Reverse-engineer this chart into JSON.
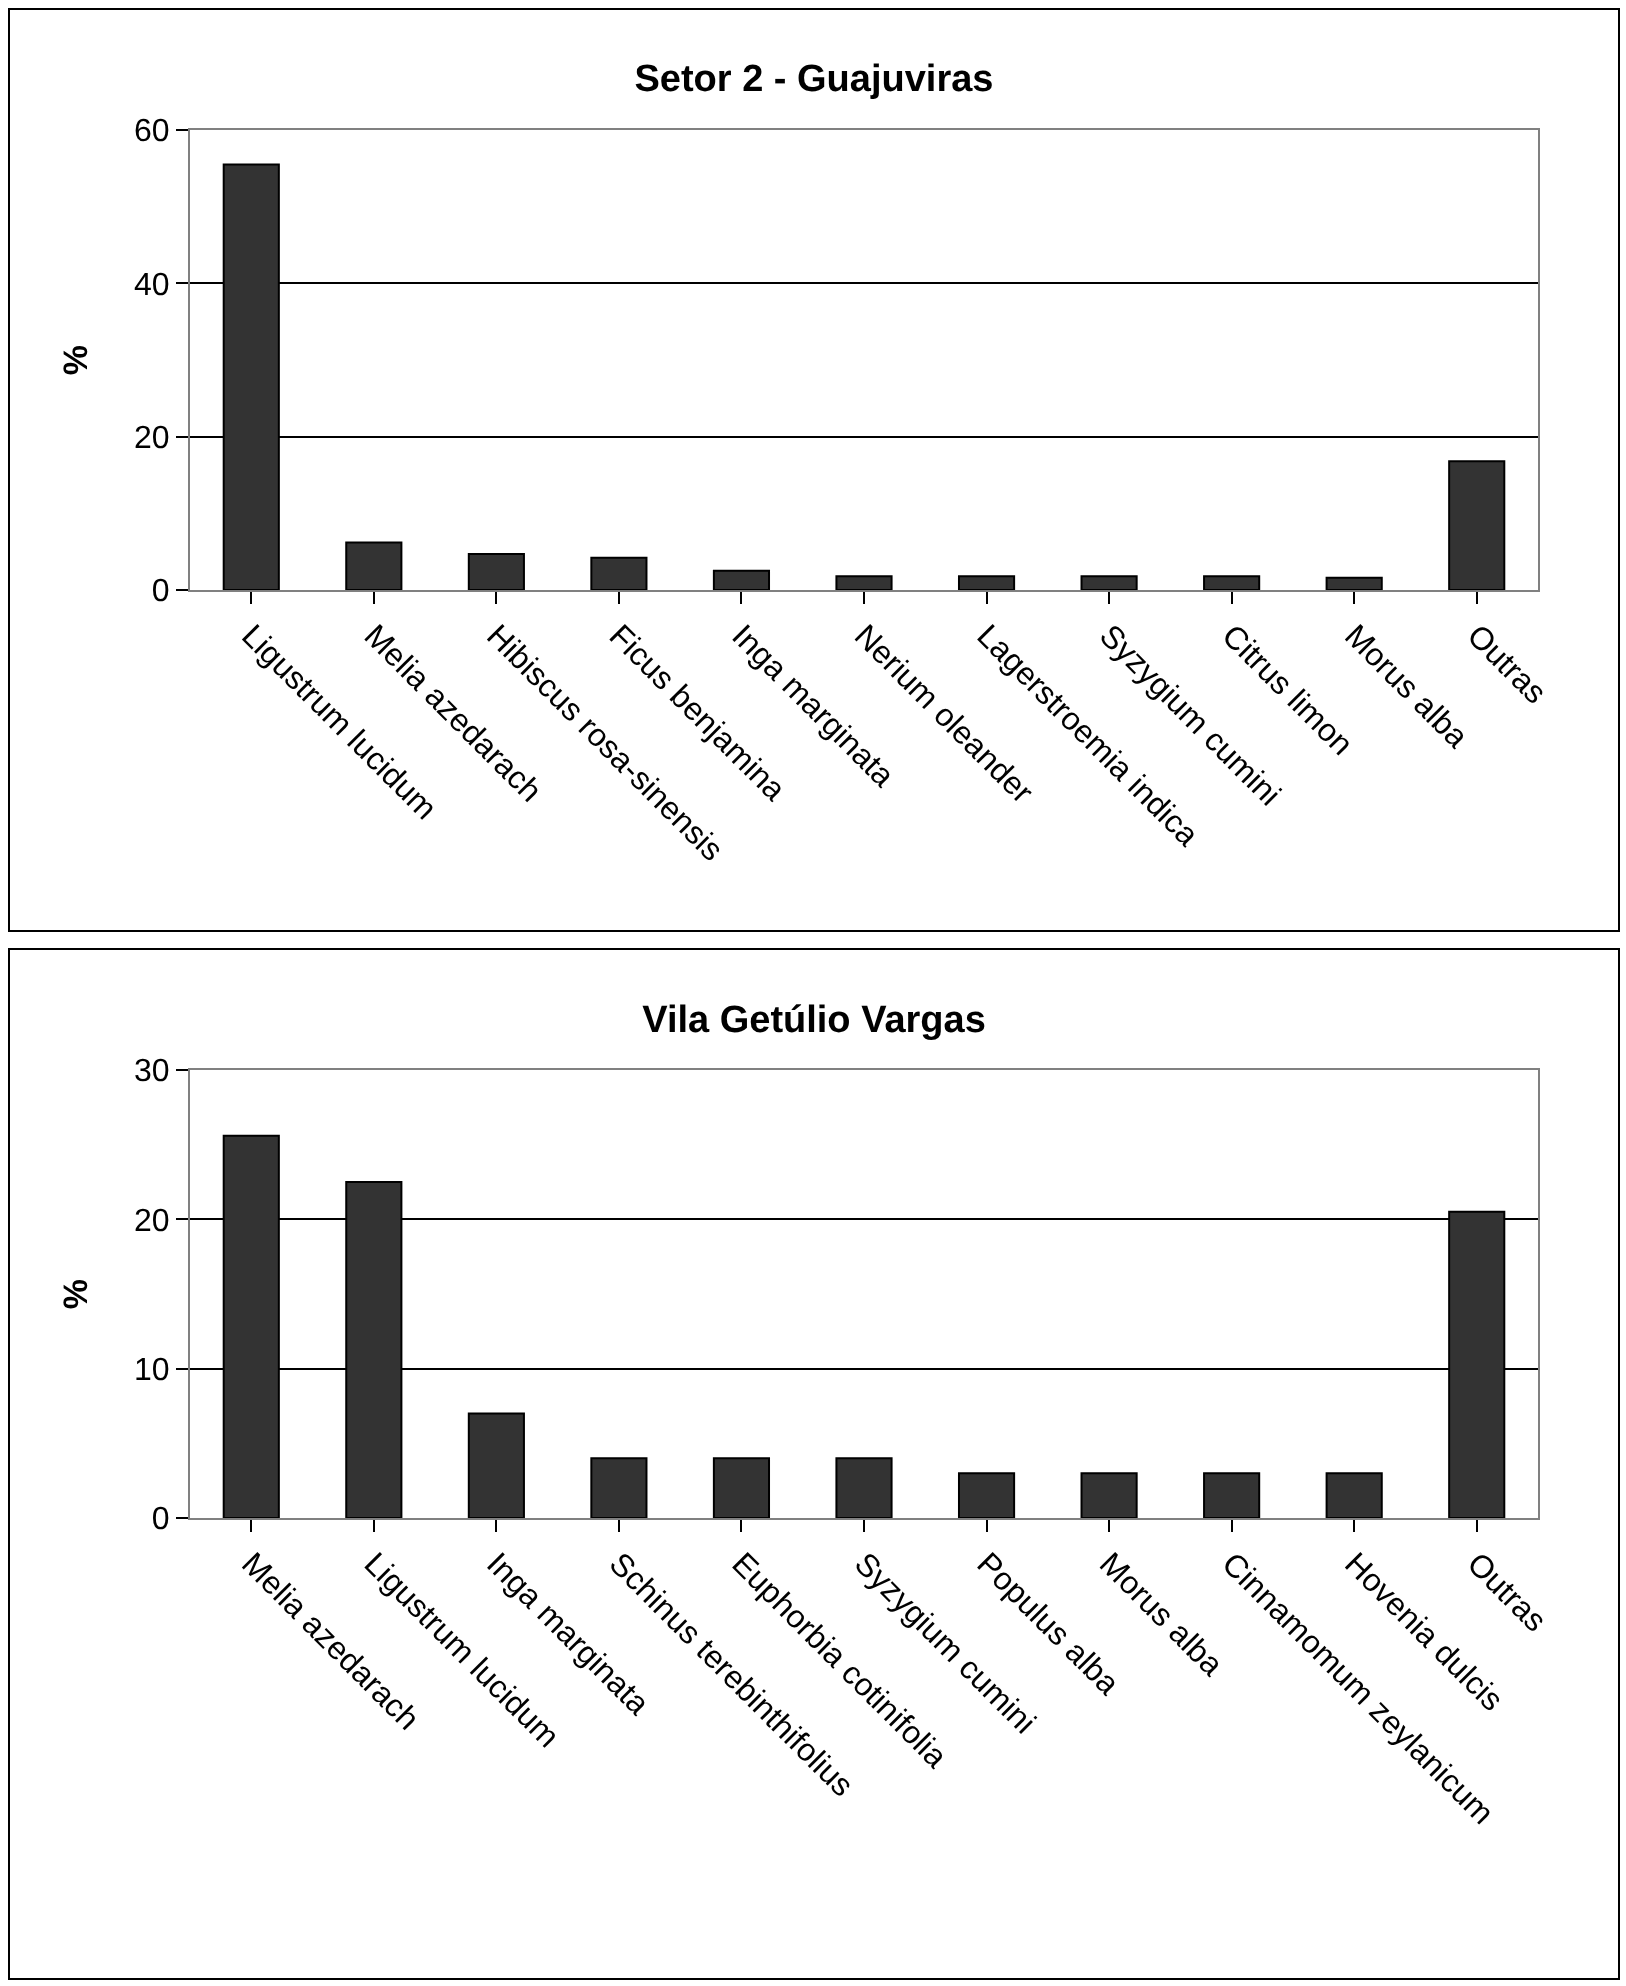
{
  "chart_data": [
    {
      "type": "bar",
      "title": "Setor 2 - Guajuviras",
      "ylabel": "%",
      "categories": [
        "Ligustrum lucidum",
        "Melia azedarach",
        "Hibiscus rosa-sinensis",
        "Ficus benjamina",
        "Inga marginata",
        "Nerium oleander",
        "Lagerstroemia indica",
        "Syzygium cumini",
        "Citrus limon",
        "Morus alba",
        "Outras"
      ],
      "values": [
        55.5,
        6.2,
        4.7,
        4.2,
        2.5,
        1.8,
        1.8,
        1.8,
        1.8,
        1.6,
        16.8
      ],
      "color": "#333333",
      "ylim": [
        0,
        60
      ],
      "yticks": [
        0,
        20,
        40,
        60
      ],
      "grid": "y"
    },
    {
      "type": "bar",
      "title": "Vila Getúlio Vargas",
      "ylabel": "%",
      "categories": [
        "Melia azedarach",
        "Ligustrum lucidum",
        "Inga marginata",
        "Schinus terebinthifolius",
        "Euphorbia cotinifolia",
        "Syzygium cumini",
        "Populus alba",
        "Morus alba",
        "Cinnamomum zeylanicum",
        "Hovenia dulcis",
        "Outras"
      ],
      "values": [
        25.6,
        22.5,
        7.0,
        4.0,
        4.0,
        4.0,
        3.0,
        3.0,
        3.0,
        3.0,
        20.5
      ],
      "color": "#333333",
      "ylim": [
        0,
        30
      ],
      "yticks": [
        0,
        10,
        20,
        30
      ],
      "grid": "y"
    }
  ]
}
